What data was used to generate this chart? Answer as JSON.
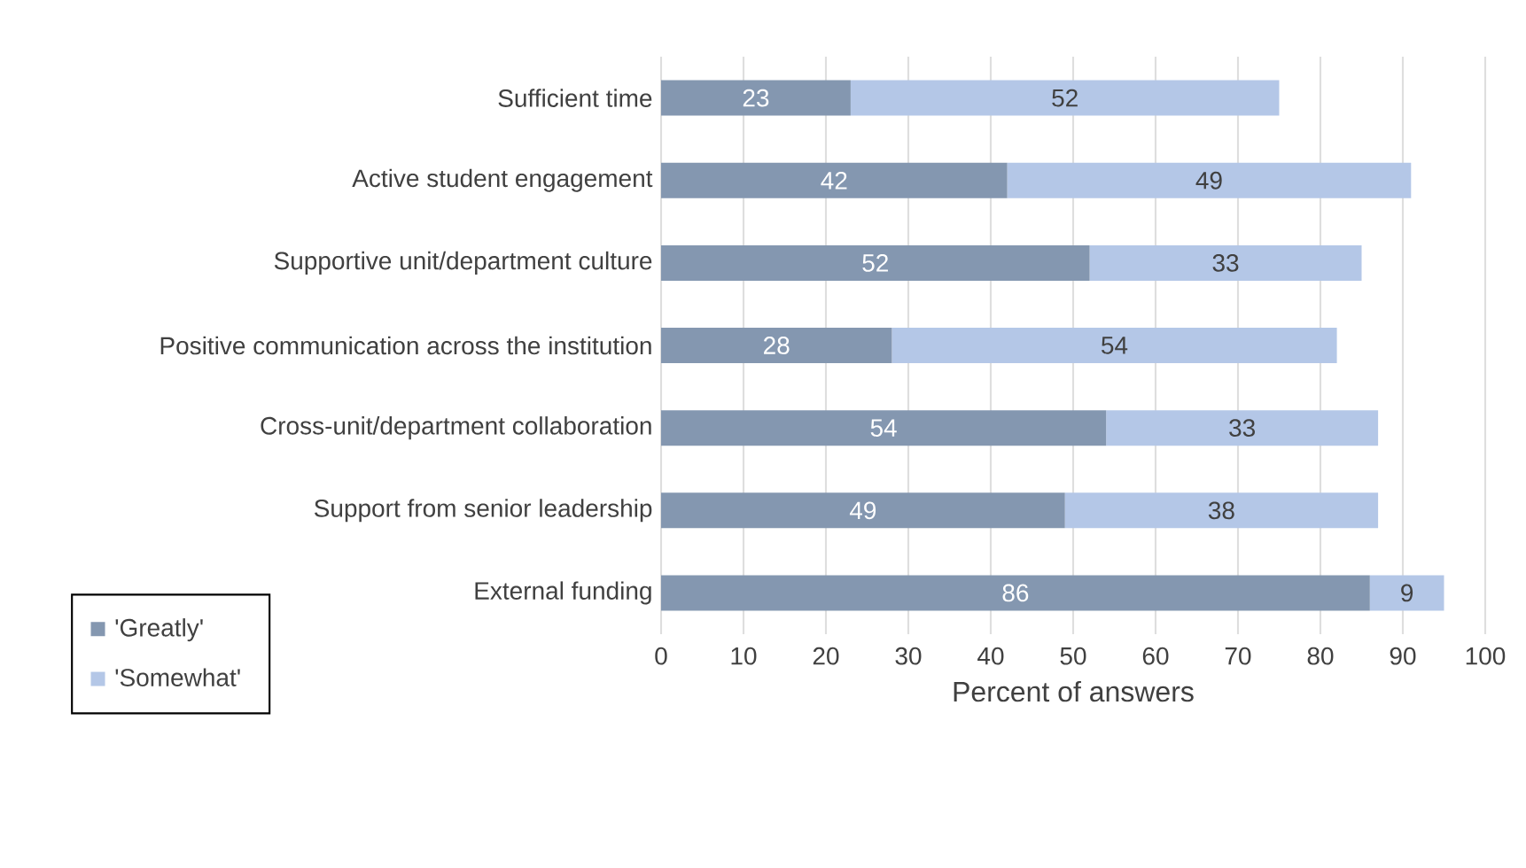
{
  "chart_data": {
    "type": "bar",
    "orientation": "horizontal",
    "stacked": true,
    "xlabel": "Percent of answers",
    "categories": [
      "Sufficient time",
      "Active student engagement",
      "Supportive unit/department culture",
      "Positive communication across the institution",
      "Cross-unit/department collaboration",
      "Support from senior leadership",
      "External funding"
    ],
    "series": [
      {
        "name": "'Greatly'",
        "color": "#8497b0",
        "values": [
          23,
          42,
          52,
          28,
          54,
          49,
          86
        ]
      },
      {
        "name": "'Somewhat'",
        "color": "#b4c7e7",
        "values": [
          52,
          49,
          33,
          54,
          33,
          38,
          9
        ]
      }
    ],
    "xlim": [
      0,
      100
    ],
    "xticks": [
      0,
      10,
      20,
      30,
      40,
      50,
      60,
      70,
      80,
      90,
      100
    ],
    "grid": "x",
    "legend": "bottom left",
    "data_labels": true
  }
}
